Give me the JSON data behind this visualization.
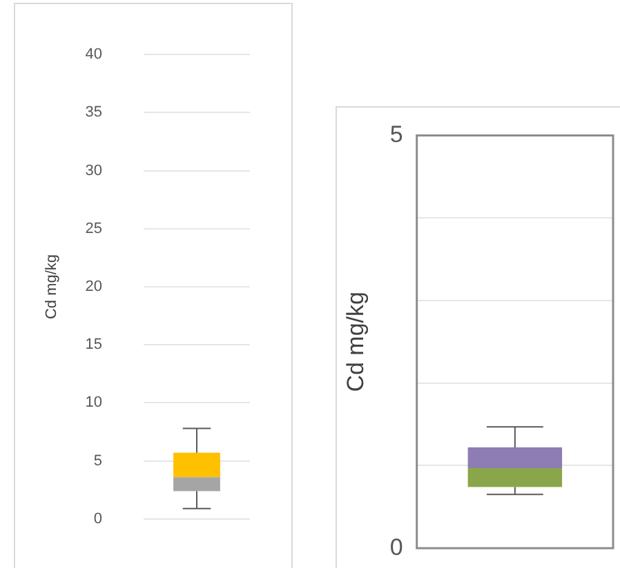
{
  "chart_data": [
    {
      "type": "box",
      "ylabel": "Cd mg/kg",
      "categories": [
        null
      ],
      "ylim": [
        0,
        40
      ],
      "yticks": [
        0,
        5,
        10,
        15,
        20,
        25,
        30,
        35,
        40
      ],
      "grid": "y",
      "series": [
        {
          "colors": [
            [
              "#a5a5a5",
              "#ffc000"
            ]
          ],
          "boxes": [
            {
              "low": 0.9,
              "q1": 2.4,
              "median": 3.6,
              "q3": 5.7,
              "high": 7.8
            }
          ]
        }
      ]
    },
    {
      "type": "box",
      "ylabel": "Cd mg/kg",
      "categories": [
        null
      ],
      "ylim": [
        0,
        5
      ],
      "yticks": [
        0,
        {
          "value": 1,
          "label": null
        },
        {
          "value": 2,
          "label": null
        },
        {
          "value": 3,
          "label": null
        },
        {
          "value": 4,
          "label": null
        },
        5
      ],
      "grid": "y",
      "series": [
        {
          "colors": [
            [
              "#8aa64a",
              "#8e7cb4"
            ]
          ],
          "boxes": [
            {
              "low": 0.65,
              "q1": 0.74,
              "median": 0.97,
              "q3": 1.22,
              "high": 1.47
            }
          ]
        }
      ]
    }
  ]
}
